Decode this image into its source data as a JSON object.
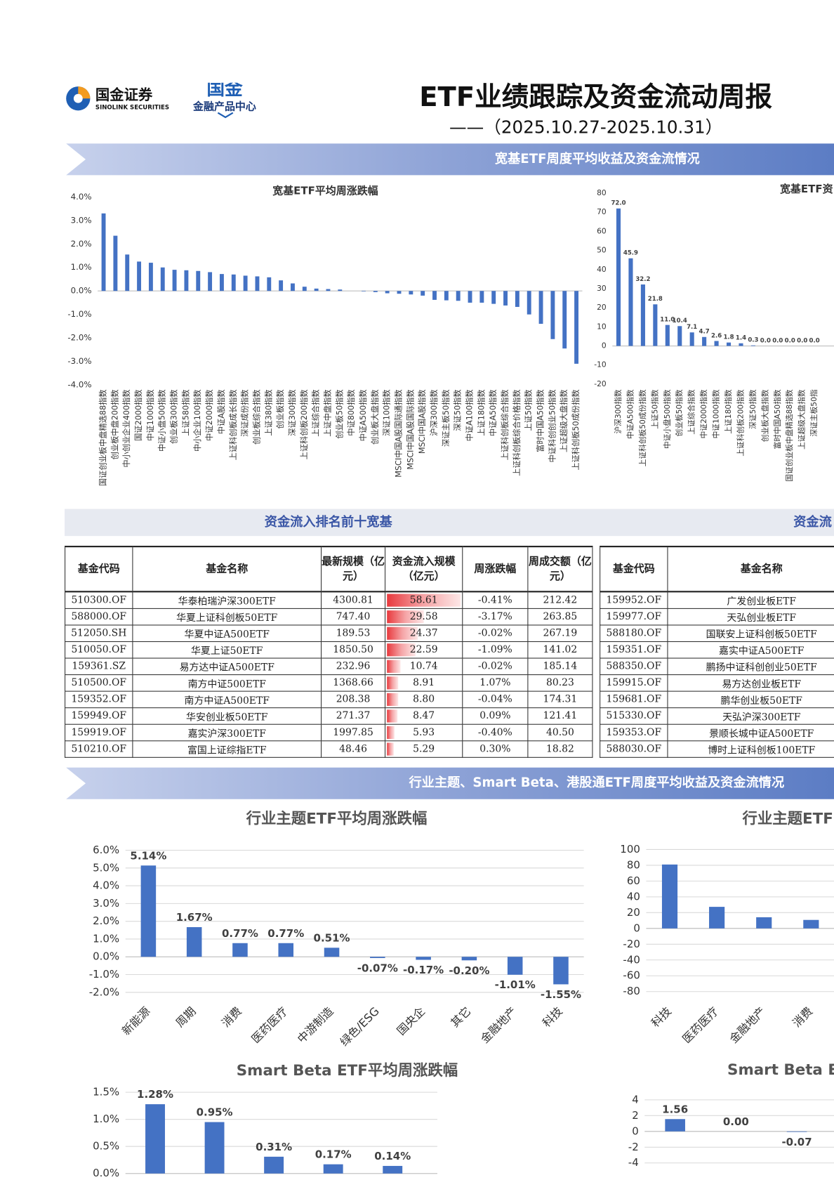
{
  "header": {
    "logo_name": "国金证券",
    "logo_english": "SINOLINK SECURITIES",
    "logo2_name": "国金",
    "logo2_sub": "金融产品中心",
    "title": "ETF业绩跟踪及资金流动周报",
    "subtitle": "——（2025.10.27-2025.10.31）"
  },
  "sections": [
    "宽基ETF周度平均收益及资金流情况",
    "行业主题、Smart Beta、港股通ETF周度平均收益及资金流情况"
  ],
  "chart_data": [
    {
      "type": "bar",
      "title": "宽基ETF平均周涨跌幅",
      "color": "#4472c4",
      "grid": false,
      "categories": [
        "国证创业板中盘精选88指数",
        "创业板中盘200指数",
        "中小创业企业400指数",
        "国证2000指数",
        "中证1000指数",
        "中证小盘500指数",
        "创业板300指数",
        "上证580指数",
        "中小企业100指数",
        "中证2000指数",
        "中证A股指数",
        "上证科创板成长指数",
        "深证成份指数",
        "创业板综合指数",
        "上证380指数",
        "创业板指数",
        "深证300指数",
        "上证科创板200指数",
        "上证综合指数",
        "上证中盘指数",
        "创业板50指数",
        "中证800指数",
        "中证A500指数",
        "创业板大盘指数",
        "深证100指数",
        "MSCI中国A股国际通指数",
        "MSCI中国A股国际指数",
        "MSCI中国A股指数",
        "沪深300指数",
        "深证主板50指数",
        "深证50指数",
        "中证A100指数",
        "上证180指数",
        "中证A50指数",
        "上证科创板综合指数",
        "上证科创板综合价格指数",
        "上证50指数",
        "富时中国A50指数",
        "中证科创创业50指数",
        "上证超级大盘指数",
        "上证科创板50成份指数"
      ],
      "values": [
        3.3,
        2.35,
        1.55,
        1.25,
        1.2,
        1.0,
        0.9,
        0.88,
        0.85,
        0.8,
        0.72,
        0.7,
        0.65,
        0.62,
        0.58,
        0.45,
        0.32,
        0.18,
        0.1,
        0.08,
        0.06,
        0.0,
        -0.02,
        -0.05,
        -0.1,
        -0.12,
        -0.15,
        -0.2,
        -0.38,
        -0.4,
        -0.42,
        -0.5,
        -0.5,
        -0.55,
        -0.62,
        -0.68,
        -1.0,
        -1.4,
        -2.05,
        -2.45,
        -3.1
      ],
      "ylim": [
        -4,
        4
      ],
      "yticks": [
        {
          "value": -4,
          "label": "-4.0%"
        },
        {
          "value": -3,
          "label": "-3.0%"
        },
        {
          "value": -2,
          "label": "-2.0%"
        },
        {
          "value": -1,
          "label": "-1.0%"
        },
        {
          "value": 0,
          "label": "0.0%"
        },
        {
          "value": 1,
          "label": "1.0%"
        },
        {
          "value": 2,
          "label": "2.0%"
        },
        {
          "value": 3,
          "label": "3.0%"
        },
        {
          "value": 4,
          "label": "4.0%"
        }
      ]
    },
    {
      "type": "bar",
      "title": "宽基ETF资",
      "color": "#4472c4",
      "grid": false,
      "categories": [
        "沪深300指数",
        "中证A500指数",
        "上证科创板50成份指数",
        "上证50指数",
        "中证小盘500指数",
        "创业板50指数",
        "上证综合指数",
        "中证2000指数",
        "中证1000指数",
        "上证180指数",
        "上证科创板200指数",
        "深证50指数",
        "创业板大盘指数",
        "富时中国A50指数",
        "国证创业板中盘精选88指数",
        "上证超级大盘指数",
        "深证主板50指"
      ],
      "values": [
        72.0,
        45.9,
        32.2,
        21.8,
        11.0,
        10.4,
        7.1,
        4.7,
        2.6,
        1.8,
        1.4,
        0.3,
        0.0,
        0.0,
        0.0,
        0.0,
        0.0
      ],
      "value_labels": [
        "72.0",
        "45.9",
        "32.2",
        "21.8",
        "11.0",
        "10.4",
        "7.1",
        "4.7",
        "2.6",
        "1.8",
        "1.4",
        "0.3",
        "0.0",
        "0.0",
        "0.0",
        "0.0",
        "0.0"
      ],
      "ylim": [
        -20,
        80
      ],
      "yticks": [
        -20,
        -10,
        0,
        10,
        20,
        30,
        40,
        50,
        60,
        70,
        80
      ]
    },
    {
      "type": "bar",
      "title": "行业主题ETF平均周涨跌幅",
      "color": "#4472c4",
      "grid": true,
      "categories": [
        "新能源",
        "周期",
        "消费",
        "医药医疗",
        "中游制造",
        "绿色/ESG",
        "国央企",
        "其它",
        "金融地产",
        "科技"
      ],
      "values": [
        5.14,
        1.67,
        0.77,
        0.77,
        0.51,
        -0.07,
        -0.17,
        -0.2,
        -1.01,
        -1.55
      ],
      "value_labels": [
        "5.14%",
        "1.67%",
        "0.77%",
        "0.77%",
        "0.51%",
        "-0.07%",
        "-0.17%",
        "-0.20%",
        "-1.01%",
        "-1.55%"
      ],
      "ylim": [
        -2,
        6
      ],
      "yticks": [
        {
          "value": -2,
          "label": "-2.0%"
        },
        {
          "value": -1,
          "label": "-1.0%"
        },
        {
          "value": 0,
          "label": "0.0%"
        },
        {
          "value": 1,
          "label": "1.0%"
        },
        {
          "value": 2,
          "label": "2.0%"
        },
        {
          "value": 3,
          "label": "3.0%"
        },
        {
          "value": 4,
          "label": "4.0%"
        },
        {
          "value": 5,
          "label": "5.0%"
        },
        {
          "value": 6,
          "label": "6.0%"
        }
      ]
    },
    {
      "type": "bar",
      "title": "行业主题ETF",
      "color": "#4472c4",
      "grid": true,
      "categories": [
        "科技",
        "医药医疗",
        "金融地产",
        "消费"
      ],
      "values": [
        80.96,
        27.34,
        14.17,
        10.77
      ],
      "ylim": [
        -80,
        100
      ],
      "yticks": [
        -80,
        -60,
        -40,
        -20,
        0,
        20,
        40,
        60,
        80,
        100
      ]
    },
    {
      "type": "bar",
      "title": "Smart Beta ETF平均周涨跌幅",
      "color": "#4472c4",
      "grid": true,
      "categories": [
        null,
        null,
        null,
        null,
        null
      ],
      "values": [
        1.28,
        0.95,
        0.31,
        0.17,
        0.14
      ],
      "value_labels": [
        "1.28%",
        "0.95%",
        "0.31%",
        "0.17%",
        "0.14%"
      ],
      "ylim": [
        -0.5,
        1.5
      ],
      "yticks": [
        {
          "value": 0,
          "label": "0.0%"
        },
        {
          "value": 0.5,
          "label": "0.5%"
        },
        {
          "value": 1,
          "label": "1.0%"
        },
        {
          "value": 1.5,
          "label": "1.5%"
        }
      ]
    },
    {
      "type": "bar",
      "title": "Smart Beta ETF",
      "color": "#4472c4",
      "grid": true,
      "categories": [
        null,
        null,
        null
      ],
      "values": [
        1.56,
        0.0,
        -0.07
      ],
      "value_labels": [
        "1.56",
        "0.00",
        "-0.07"
      ],
      "ylim": [
        -6,
        4
      ],
      "yticks": [
        -4,
        -2,
        0,
        2,
        4
      ]
    }
  ],
  "tables": [
    {
      "title": "资金流入排名前十宽基",
      "columns": [
        "基金代码",
        "基金名称",
        "最新规模（亿元）",
        "资金流入规模（亿元）",
        "周涨跌幅",
        "周成交额（亿元）"
      ],
      "rows": [
        [
          "510300.OF",
          "华泰柏瑞沪深300ETF",
          "4300.81",
          "58.61",
          "-0.41%",
          "212.42"
        ],
        [
          "588000.OF",
          "华夏上证科创板50ETF",
          "747.40",
          "29.58",
          "-3.17%",
          "263.85"
        ],
        [
          "512050.SH",
          "华夏中证A500ETF",
          "189.53",
          "24.37",
          "-0.02%",
          "267.19"
        ],
        [
          "510050.OF",
          "华夏上证50ETF",
          "1850.50",
          "22.59",
          "-1.09%",
          "141.02"
        ],
        [
          "159361.SZ",
          "易方达中证A500ETF",
          "232.96",
          "10.74",
          "-0.02%",
          "185.14"
        ],
        [
          "510500.OF",
          "南方中证500ETF",
          "1368.66",
          "8.91",
          "1.07%",
          "80.23"
        ],
        [
          "159352.OF",
          "南方中证A500ETF",
          "208.38",
          "8.80",
          "-0.04%",
          "174.31"
        ],
        [
          "159949.OF",
          "华安创业板50ETF",
          "271.37",
          "8.47",
          "0.09%",
          "121.41"
        ],
        [
          "159919.OF",
          "嘉实沪深300ETF",
          "1997.85",
          "5.93",
          "-0.40%",
          "40.50"
        ],
        [
          "510210.OF",
          "富国上证综指ETF",
          "48.46",
          "5.29",
          "0.30%",
          "18.82"
        ]
      ]
    },
    {
      "title": "资金流",
      "columns": [
        "基金代码",
        "基金名称"
      ],
      "rows": [
        [
          "159952.OF",
          "广发创业板ETF"
        ],
        [
          "159977.OF",
          "天弘创业板ETF"
        ],
        [
          "588180.OF",
          "国联安上证科创板50ETF"
        ],
        [
          "159351.OF",
          "嘉实中证A500ETF"
        ],
        [
          "588350.OF",
          "鹏扬中证科创创业50ETF"
        ],
        [
          "159915.OF",
          "易方达创业板ETF"
        ],
        [
          "159681.OF",
          "鹏华创业板50ETF"
        ],
        [
          "515330.OF",
          "天弘沪深300ETF"
        ],
        [
          "159353.OF",
          "景顺长城中证A500ETF"
        ],
        [
          "588030.OF",
          "博时上证科创板100ETF"
        ]
      ]
    }
  ]
}
